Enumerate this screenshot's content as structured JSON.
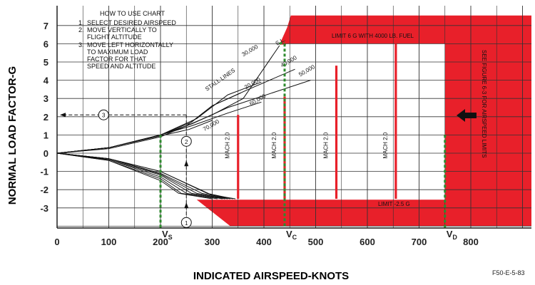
{
  "chart_data": {
    "type": "line",
    "title": "",
    "xlabel": "INDICATED AIRSPEED-KNOTS",
    "ylabel": "NORMAL LOAD FACTOR-G",
    "xlim": [
      0,
      900
    ],
    "ylim": [
      -4,
      7.5
    ],
    "x_ticks": [
      "0",
      "100",
      "200",
      "300",
      "400",
      "500",
      "600",
      "700",
      "800"
    ],
    "y_ticks": [
      "7",
      "6",
      "5",
      "4",
      "3",
      "2",
      "1",
      "0",
      "-1",
      "-2",
      "-3"
    ],
    "grid": true,
    "colors": {
      "limit": "#e8202a",
      "speed_lines": "#2e8b2e",
      "lines": "#111111"
    },
    "instructions": {
      "heading": "HOW TO USE CHART",
      "steps": [
        {
          "num": "1.",
          "lines": [
            "SELECT DESIRED AIRSPEED"
          ]
        },
        {
          "num": "2.",
          "lines": [
            "MOVE VERTICALLY TO",
            "FLIGHT ALTITUDE"
          ]
        },
        {
          "num": "3.",
          "lines": [
            "MOVE LEFT HORIZONTALLY",
            "TO MAXIMUM LOAD",
            "FACTOR FOR THAT",
            "SPEED AND ALTITUDE"
          ]
        }
      ]
    },
    "annotations": {
      "stall_lines": "STALL LINES",
      "limit_top": "LIMIT 6 G WITH 4000 LB. FUEL",
      "limit_bottom": "LIMIT -2.5 G",
      "side_note": "SEE FIGURE 6-3 FOR AIRSPEED LIMITS",
      "figure_id": "F50-E-5-83",
      "step_markers": [
        "1",
        "2",
        "3"
      ]
    },
    "altitude_lines": [
      {
        "name": "S.L.",
        "points": [
          [
            0,
            0
          ],
          [
            100,
            0.25
          ],
          [
            200,
            0.9
          ],
          [
            300,
            2.1
          ],
          [
            360,
            3.0
          ],
          [
            430,
            5.9
          ]
        ],
        "label_at": [
          425,
          5.9
        ]
      },
      {
        "name": "20,000",
        "points": [
          [
            0,
            0
          ],
          [
            100,
            0.3
          ],
          [
            200,
            1.0
          ],
          [
            270,
            1.9
          ],
          [
            330,
            3.2
          ],
          [
            395,
            3.9
          ]
        ],
        "label_at": [
          365,
          3.5
        ]
      },
      {
        "name": "30,000",
        "points": [
          [
            0,
            0
          ],
          [
            100,
            0.3
          ],
          [
            200,
            1.0
          ],
          [
            250,
            1.5
          ],
          [
            300,
            2.6
          ],
          [
            355,
            3.3
          ]
        ],
        "label_at": [
          360,
          5.3
        ]
      },
      {
        "name": "40,000",
        "points": [
          [
            0,
            0
          ],
          [
            100,
            0.3
          ],
          [
            200,
            1.0
          ],
          [
            260,
            1.7
          ],
          [
            300,
            2.6
          ],
          [
            370,
            3.5
          ],
          [
            460,
            4.6
          ]
        ],
        "label_at": [
          435,
          4.7
        ]
      },
      {
        "name": "50,000",
        "points": [
          [
            0,
            0
          ],
          [
            100,
            0.3
          ],
          [
            200,
            1.0
          ],
          [
            260,
            1.6
          ],
          [
            330,
            2.5
          ],
          [
            490,
            4.0
          ]
        ],
        "label_at": [
          470,
          4.2
        ]
      },
      {
        "name": "60,000",
        "points": [
          [
            0,
            0
          ],
          [
            100,
            0.3
          ],
          [
            200,
            1.0
          ],
          [
            260,
            1.5
          ],
          [
            330,
            2.2
          ],
          [
            395,
            2.8
          ]
        ],
        "label_at": [
          375,
          2.6
        ]
      },
      {
        "name": "70,000",
        "points": [
          [
            0,
            0
          ],
          [
            100,
            0.3
          ],
          [
            200,
            0.95
          ],
          [
            255,
            1.3
          ],
          [
            300,
            1.8
          ]
        ],
        "label_at": [
          285,
          1.2
        ]
      }
    ],
    "negative_lines": [
      {
        "points": [
          [
            0,
            0
          ],
          [
            100,
            -0.3
          ],
          [
            200,
            -1.0
          ],
          [
            300,
            -2.3
          ],
          [
            345,
            -2.5
          ]
        ]
      },
      {
        "points": [
          [
            0,
            0
          ],
          [
            100,
            -0.3
          ],
          [
            200,
            -1.0
          ],
          [
            290,
            -2.2
          ],
          [
            340,
            -2.5
          ]
        ]
      },
      {
        "points": [
          [
            0,
            0
          ],
          [
            100,
            -0.3
          ],
          [
            200,
            -1.1
          ],
          [
            280,
            -2.2
          ],
          [
            335,
            -2.5
          ]
        ]
      },
      {
        "points": [
          [
            0,
            0
          ],
          [
            100,
            -0.3
          ],
          [
            200,
            -1.15
          ],
          [
            270,
            -2.2
          ],
          [
            330,
            -2.5
          ]
        ]
      },
      {
        "points": [
          [
            0,
            0
          ],
          [
            100,
            -0.35
          ],
          [
            200,
            -1.2
          ],
          [
            260,
            -2.2
          ],
          [
            325,
            -2.5
          ]
        ]
      },
      {
        "points": [
          [
            0,
            0
          ],
          [
            100,
            -0.35
          ],
          [
            200,
            -1.3
          ],
          [
            250,
            -2.2
          ],
          [
            320,
            -2.5
          ]
        ]
      },
      {
        "points": [
          [
            0,
            0
          ],
          [
            100,
            -0.4
          ],
          [
            200,
            -1.4
          ],
          [
            240,
            -2.2
          ],
          [
            310,
            -2.5
          ]
        ]
      },
      {
        "points": [
          [
            0,
            0
          ],
          [
            100,
            -0.4
          ],
          [
            200,
            -1.5
          ],
          [
            235,
            -2.2
          ],
          [
            300,
            -2.5
          ]
        ]
      }
    ],
    "mach_lines": [
      {
        "label": "MACH 2.0",
        "x": 350,
        "y_top": 2.1
      },
      {
        "label": "MACH 2.0",
        "x": 440,
        "y_top": 3.1
      },
      {
        "label": "MACH 2.0",
        "x": 540,
        "y_top": 4.8
      },
      {
        "label": "MACH 2.0",
        "x": 655,
        "y_top": 6.0
      }
    ],
    "speed_lines": [
      {
        "label": "VS",
        "sub": "S",
        "x": 200
      },
      {
        "label": "VC",
        "sub": "C",
        "x": 440
      },
      {
        "label": "VD",
        "sub": "D",
        "x": 750
      }
    ],
    "example": {
      "airspeed": 250,
      "load": 2.1,
      "arrow_left_to": 0
    }
  }
}
